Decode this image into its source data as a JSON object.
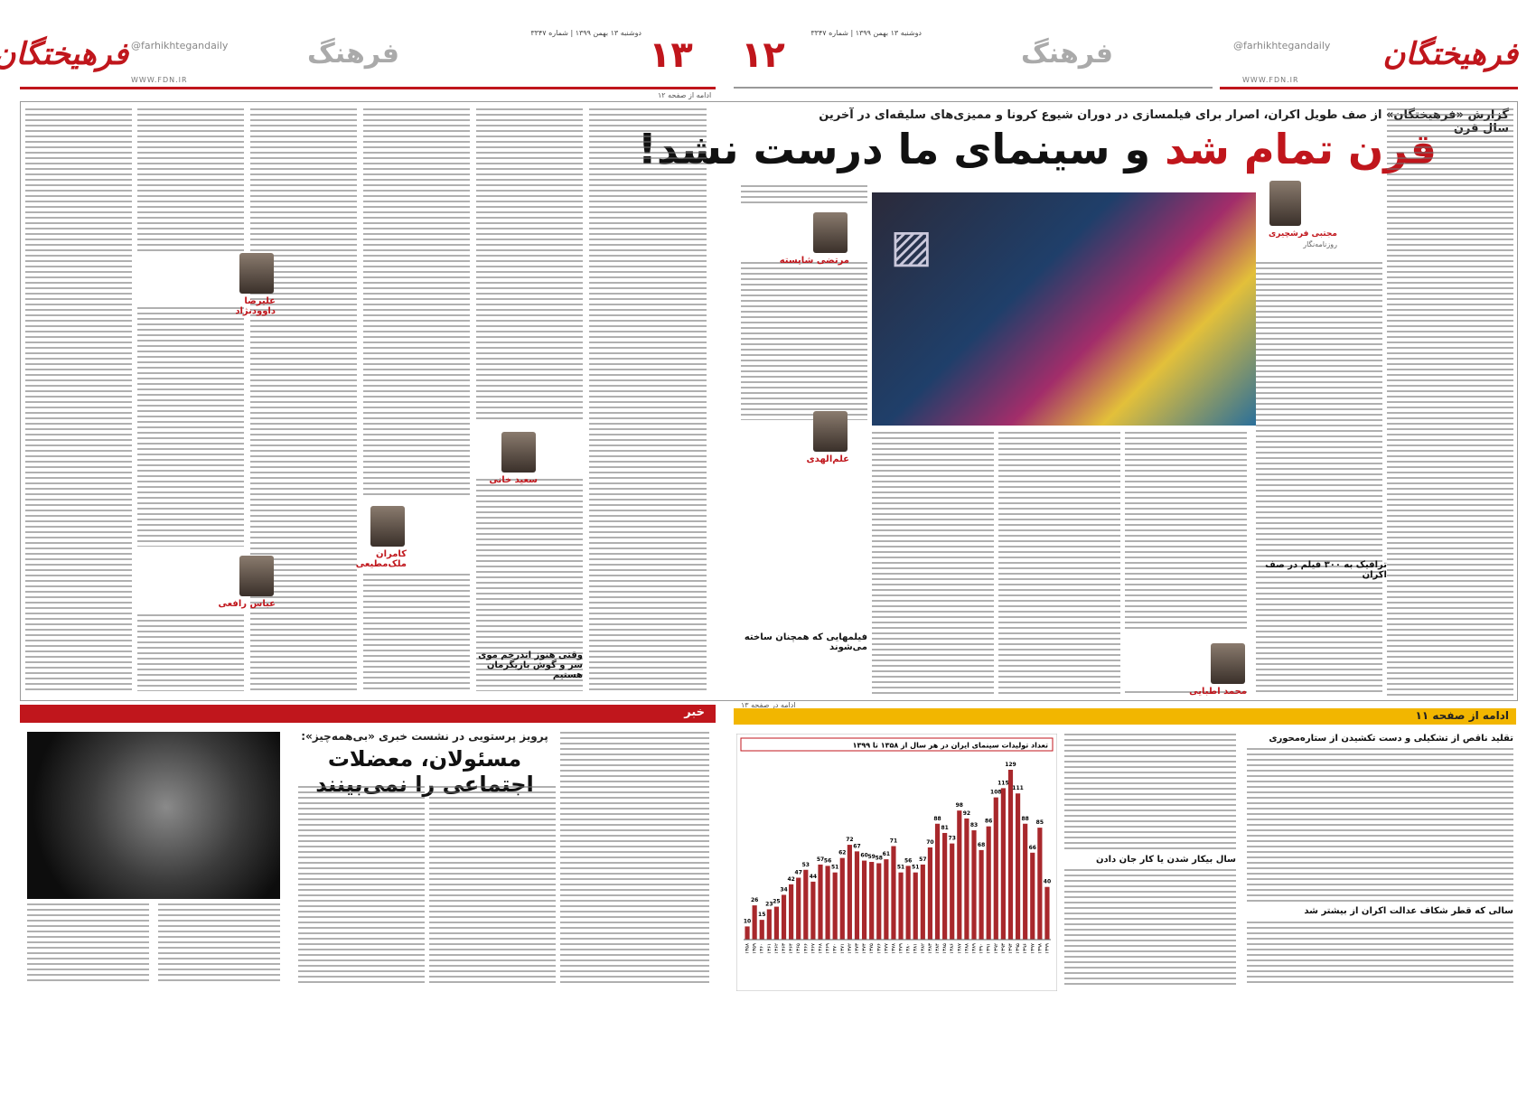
{
  "pages": [
    {
      "number": "۱۳",
      "section": "فرهنگ",
      "logo": "فرهیختگان",
      "handle": "@farhikhtegandaily",
      "date": "دوشنبه ۱۳ بهمن ۱۳۹۹ | شماره ۳۳۴۷",
      "site": "WWW.FDN.IR"
    },
    {
      "number": "۱۲",
      "section": "فرهنگ",
      "logo": "فرهیختگان",
      "handle": "@farhikhtegandaily",
      "date": "دوشنبه ۱۳ بهمن ۱۳۹۹ | شماره ۳۳۴۷",
      "site": "WWW.FDN.IR"
    }
  ],
  "main_article": {
    "kicker": "گزارش «فرهیختگان» از صف طویل اکران، اصرار برای فیلمسازی در دوران شیوع کرونا و ممیزی‌های سلیقه‌ای در آخرین سال قرن",
    "headline_red": "قرن تمام شد",
    "headline_black": "و سینمای ما درست نشد!",
    "author": "مجتبی فرشچیری",
    "author_role": "روزنامه‌نگار",
    "subheads": [
      "ترافیک به ۳۰۰ فیلم در صف اکران",
      "فیلمهایی که همچنان ساخته می‌شوند",
      "وقتی هنوز اندرخم موی سر و گوش بازیگرمان هستیم"
    ],
    "quotes": [
      "مرتضی شایسته",
      "علم‌الهدی",
      "محمد اطبایی",
      "سعید خانی",
      "کامران ملک‌مطیعی",
      "عباس رافعی",
      "علیرضا داوودنژاد"
    ],
    "continued_to": "ادامه در صفحه ۱۳",
    "continued_from": "ادامه از صفحه ۱۲"
  },
  "news": {
    "section": "خبر",
    "kicker": "پرویز پرستویی در نشست خبری «بی‌همه‌چیز»:",
    "headline": "مسئولان، معضلات اجتماعی را نمی‌بینند"
  },
  "continuation": {
    "banner": "ادامه از صفحه ۱۱",
    "subheads": [
      "تقلید ناقص از تشکیلی و دست تکشیدن از ستاره‌محوری",
      "سالی که قطر شکاف عدالت اکران از بیشتر شد",
      "سال بیکار شدن یا کار جان دادن"
    ]
  },
  "chart_data": {
    "type": "bar",
    "title": "تعداد تولیدات سینمای ایران در هر سال از ۱۳۵۸ تا ۱۳۹۹",
    "color": "#a8282c",
    "categories": [
      "۱۳۵۸",
      "۱۳۵۹",
      "۱۳۶۰",
      "۱۳۶۱",
      "۱۳۶۲",
      "۱۳۶۳",
      "۱۳۶۴",
      "۱۳۶۵",
      "۱۳۶۶",
      "۱۳۶۷",
      "۱۳۶۸",
      "۱۳۶۹",
      "۱۳۷۰",
      "۱۳۷۱",
      "۱۳۷۲",
      "۱۳۷۳",
      "۱۳۷۴",
      "۱۳۷۵",
      "۱۳۷۶",
      "۱۳۷۷",
      "۱۳۷۸",
      "۱۳۷۹",
      "۱۳۸۰",
      "۱۳۸۱",
      "۱۳۸۲",
      "۱۳۸۳",
      "۱۳۸۴",
      "۱۳۸۵",
      "۱۳۸۶",
      "۱۳۸۷",
      "۱۳۸۸",
      "۱۳۸۹",
      "۱۳۹۰",
      "۱۳۹۱",
      "۱۳۹۲",
      "۱۳۹۳",
      "۱۳۹۴",
      "۱۳۹۵",
      "۱۳۹۶",
      "۱۳۹۷",
      "۱۳۹۸",
      "۱۳۹۹"
    ],
    "values": [
      10,
      26,
      15,
      23,
      25,
      34,
      42,
      47,
      53,
      44,
      57,
      56,
      51,
      62,
      72,
      67,
      60,
      59,
      58,
      61,
      71,
      51,
      56,
      51,
      57,
      70,
      88,
      81,
      73,
      98,
      92,
      83,
      68,
      86,
      108,
      115,
      129,
      111,
      88,
      66,
      85,
      40
    ]
  }
}
